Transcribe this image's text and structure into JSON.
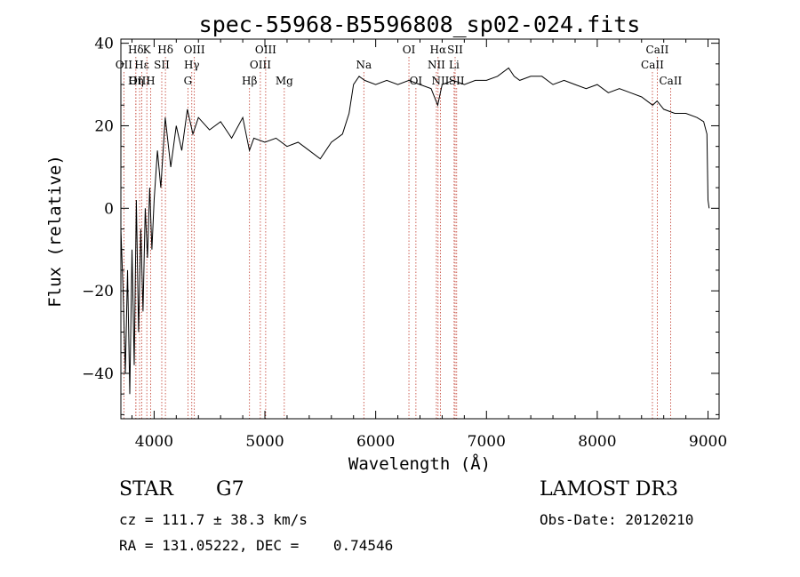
{
  "chart_data": {
    "type": "line",
    "title": "spec-55968-B5596808_sp02-024.fits",
    "xlabel": "Wavelength (Å)",
    "ylabel": "Flux (relative)",
    "xlim": [
      3700,
      9100
    ],
    "ylim": [
      -51,
      41
    ],
    "xticks": [
      4000,
      5000,
      6000,
      7000,
      8000,
      9000
    ],
    "yticks": [
      -40,
      -20,
      0,
      20,
      40
    ],
    "grid": false,
    "series": [
      {
        "x": [
          3700,
          3720,
          3740,
          3760,
          3780,
          3800,
          3820,
          3840,
          3860,
          3880,
          3900,
          3920,
          3940,
          3960,
          3980,
          4000,
          4030,
          4060,
          4100,
          4150,
          4200,
          4250,
          4300,
          4350,
          4400,
          4500,
          4600,
          4700,
          4800,
          4860,
          4900,
          5000,
          5100,
          5200,
          5300,
          5400,
          5500,
          5600,
          5700,
          5760,
          5800,
          5850,
          5900,
          6000,
          6100,
          6200,
          6300,
          6400,
          6500,
          6560,
          6600,
          6700,
          6800,
          6900,
          7000,
          7100,
          7200,
          7250,
          7300,
          7400,
          7500,
          7600,
          7700,
          7800,
          7900,
          8000,
          8100,
          8200,
          8300,
          8400,
          8500,
          8540,
          8600,
          8700,
          8800,
          8900,
          8960,
          8990,
          9000,
          9010
        ],
        "y": [
          -5,
          -20,
          -40,
          -15,
          -45,
          -10,
          -38,
          2,
          -30,
          -5,
          -25,
          0,
          -12,
          5,
          -10,
          2,
          14,
          5,
          22,
          10,
          20,
          14,
          24,
          18,
          22,
          19,
          21,
          17,
          22,
          14,
          17,
          16,
          17,
          15,
          16,
          14,
          12,
          16,
          18,
          23,
          30,
          32,
          31,
          30,
          31,
          30,
          31,
          30,
          29,
          25,
          30,
          31,
          30,
          31,
          31,
          32,
          34,
          32,
          31,
          32,
          32,
          30,
          31,
          30,
          29,
          30,
          28,
          29,
          28,
          27,
          25,
          26,
          24,
          23,
          23,
          22,
          21,
          18,
          2,
          0
        ]
      }
    ],
    "lines": [
      {
        "label": "Hδ",
        "x": 3835,
        "row": 0
      },
      {
        "label": "OII",
        "x": 3727,
        "row": 1
      },
      {
        "label": "OIII",
        "x": 3869,
        "row": 2
      },
      {
        "label": "Hε",
        "x": 3889,
        "row": 1
      },
      {
        "label": "Hη",
        "x": 3835,
        "row": 2
      },
      {
        "label": "K",
        "x": 3934,
        "row": 0
      },
      {
        "label": "SII",
        "x": 4069,
        "row": 1
      },
      {
        "label": "H",
        "x": 3968,
        "row": 2
      },
      {
        "label": "Hδ",
        "x": 4102,
        "row": 0
      },
      {
        "label": "OIII",
        "x": 4363,
        "row": 0
      },
      {
        "label": "Hγ",
        "x": 4340,
        "row": 1
      },
      {
        "label": "G",
        "x": 4305,
        "row": 2
      },
      {
        "label": "OIII",
        "x": 5007,
        "row": 0
      },
      {
        "label": "OIII",
        "x": 4959,
        "row": 1
      },
      {
        "label": "Hβ",
        "x": 4861,
        "row": 2
      },
      {
        "label": "Mg",
        "x": 5175,
        "row": 2
      },
      {
        "label": "Na",
        "x": 5893,
        "row": 1
      },
      {
        "label": "OI",
        "x": 6300,
        "row": 0
      },
      {
        "label": "OI",
        "x": 6363,
        "row": 2
      },
      {
        "label": "Hα",
        "x": 6563,
        "row": 0
      },
      {
        "label": "SII",
        "x": 6717,
        "row": 0
      },
      {
        "label": "NII",
        "x": 6548,
        "row": 1
      },
      {
        "label": "Li",
        "x": 6708,
        "row": 1
      },
      {
        "label": "NII",
        "x": 6584,
        "row": 2
      },
      {
        "label": "SII",
        "x": 6731,
        "row": 2
      },
      {
        "label": "CaII",
        "x": 8542,
        "row": 0
      },
      {
        "label": "CaII",
        "x": 8498,
        "row": 1
      },
      {
        "label": "CaII",
        "x": 8662,
        "row": 2
      }
    ]
  },
  "info": {
    "object_class": "STAR",
    "subclass": "G7",
    "survey": "LAMOST DR3",
    "redshift": "cz = 111.7 ± 38.3 km/s",
    "obs_date": "Obs-Date: 20120210",
    "coords": "RA = 131.05222, DEC =    0.74546"
  }
}
